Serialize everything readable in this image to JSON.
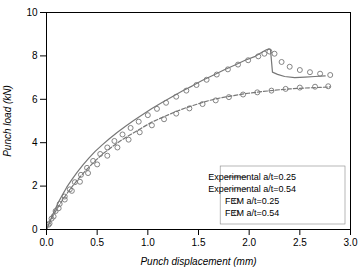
{
  "chart_data": {
    "type": "line",
    "xlabel": "Punch displacement (mm)",
    "ylabel": "Punch load (kN)",
    "xlim": [
      0,
      3.0
    ],
    "ylim": [
      0,
      10
    ],
    "xticks": [
      {
        "value": 0.0,
        "label": "0.0"
      },
      0.5,
      {
        "value": 1.0,
        "label": "1.0"
      },
      1.5,
      {
        "value": 2.0,
        "label": "2.0"
      },
      2.5,
      {
        "value": 3.0,
        "label": "3.0"
      }
    ],
    "yticks": [
      0,
      2,
      4,
      6,
      8,
      10
    ],
    "grid": false,
    "legend": "lower right",
    "series": [
      {
        "name": "Experimental a/t=0.25",
        "type": "line",
        "line_style": "solid",
        "color": "#777777",
        "x": [
          0.0,
          0.02,
          0.04,
          0.06,
          0.09,
          0.12,
          0.16,
          0.2,
          0.25,
          0.3,
          0.36,
          0.42,
          0.48,
          0.55,
          0.62,
          0.7,
          0.78,
          0.86,
          0.95,
          1.04,
          1.14,
          1.24,
          1.34,
          1.44,
          1.54,
          1.65,
          1.75,
          1.86,
          1.96,
          2.06,
          2.13,
          2.17,
          2.19,
          2.21,
          2.23,
          2.28,
          2.35,
          2.45,
          2.55,
          2.65,
          2.75
        ],
        "values": [
          0.0,
          0.22,
          0.45,
          0.68,
          0.98,
          1.28,
          1.62,
          1.95,
          2.3,
          2.62,
          2.98,
          3.3,
          3.6,
          3.9,
          4.18,
          4.48,
          4.76,
          5.02,
          5.3,
          5.58,
          5.85,
          6.12,
          6.38,
          6.62,
          6.88,
          7.12,
          7.35,
          7.58,
          7.8,
          7.98,
          8.18,
          8.28,
          8.32,
          8.3,
          7.25,
          7.15,
          7.05,
          7.0,
          7.02,
          7.05,
          7.08
        ]
      },
      {
        "name": "Experimental a/t=0.54",
        "type": "line",
        "line_style": "dashed",
        "color": "#777777",
        "x": [
          0.0,
          0.03,
          0.06,
          0.1,
          0.15,
          0.2,
          0.26,
          0.33,
          0.4,
          0.48,
          0.56,
          0.65,
          0.74,
          0.84,
          0.94,
          1.04,
          1.15,
          1.26,
          1.37,
          1.49,
          1.61,
          1.73,
          1.86,
          1.99,
          2.12,
          2.25,
          2.4,
          2.55,
          2.7,
          2.8
        ],
        "values": [
          0.0,
          0.3,
          0.6,
          0.92,
          1.3,
          1.65,
          2.02,
          2.42,
          2.78,
          3.16,
          3.5,
          3.82,
          4.12,
          4.4,
          4.68,
          4.95,
          5.18,
          5.4,
          5.6,
          5.78,
          5.95,
          6.08,
          6.18,
          6.28,
          6.35,
          6.42,
          6.48,
          6.52,
          6.55,
          6.57
        ]
      },
      {
        "name": "FEM a/t=0.25",
        "type": "scatter",
        "marker": "open_circle",
        "color": "#777777",
        "x": [
          0.02,
          0.05,
          0.09,
          0.13,
          0.18,
          0.23,
          0.28,
          0.34,
          0.4,
          0.46,
          0.53,
          0.6,
          0.67,
          0.75,
          0.83,
          0.91,
          1.0,
          1.09,
          1.18,
          1.28,
          1.38,
          1.48,
          1.58,
          1.68,
          1.79,
          1.89,
          1.99,
          2.09,
          2.15,
          2.2,
          2.25,
          2.32,
          2.4,
          2.5,
          2.6,
          2.7,
          2.8
        ],
        "values": [
          0.22,
          0.5,
          0.85,
          1.18,
          1.52,
          1.85,
          2.18,
          2.52,
          2.84,
          3.16,
          3.48,
          3.78,
          4.08,
          4.38,
          4.68,
          4.97,
          5.27,
          5.56,
          5.84,
          6.12,
          6.4,
          6.66,
          6.9,
          7.14,
          7.38,
          7.6,
          7.8,
          7.98,
          8.1,
          8.2,
          8.1,
          7.72,
          7.5,
          7.35,
          7.25,
          7.18,
          7.12
        ]
      },
      {
        "name": "FEM a/t=0.54",
        "type": "scatter",
        "marker": "open_circle",
        "color": "#777777",
        "x": [
          0.03,
          0.07,
          0.12,
          0.18,
          0.25,
          0.33,
          0.41,
          0.5,
          0.6,
          0.7,
          0.81,
          0.92,
          1.04,
          1.16,
          1.28,
          1.41,
          1.54,
          1.67,
          1.8,
          1.94,
          2.08,
          2.22,
          2.36,
          2.5,
          2.65,
          2.78
        ],
        "values": [
          0.28,
          0.6,
          0.98,
          1.38,
          1.78,
          2.2,
          2.6,
          3.0,
          3.4,
          3.78,
          4.14,
          4.48,
          4.8,
          5.08,
          5.34,
          5.58,
          5.78,
          5.95,
          6.1,
          6.22,
          6.32,
          6.4,
          6.48,
          6.54,
          6.58,
          6.6
        ]
      }
    ]
  }
}
